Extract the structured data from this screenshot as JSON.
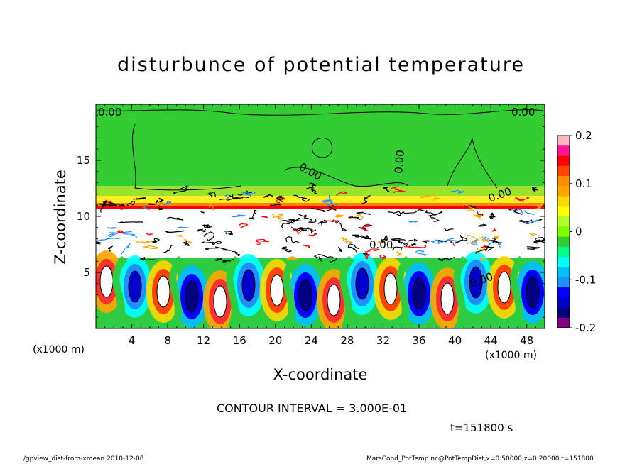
{
  "title": "disturbunce of potential temperature",
  "contour_interval": "CONTOUR INTERVAL = 3.000E-01",
  "time_label": "t=151800 s",
  "footer_left": "./gpview_dist-from-xmean  2010-12-08",
  "footer_right": "MarsCond_PotTemp.nc@PotTempDist,x=0:50000,z=0:20000,t=151800",
  "contour_labels": [
    "0.00",
    "0.00",
    "0.00",
    "0.00",
    "0.00",
    "0.00",
    "0.00"
  ],
  "chart_data": {
    "type": "heatmap",
    "title": "disturbunce of potential temperature",
    "xlabel": "X-coordinate",
    "ylabel": "Z-coordinate",
    "x_unit_label": "(x1000 m)",
    "y_unit_label": "(x1000 m)",
    "xlim": [
      0,
      50
    ],
    "ylim": [
      0,
      20
    ],
    "x_ticks": [
      "4",
      "8",
      "12",
      "16",
      "20",
      "24",
      "28",
      "32",
      "36",
      "40",
      "44",
      "48"
    ],
    "x_tick_values": [
      4,
      8,
      12,
      16,
      20,
      24,
      28,
      32,
      36,
      40,
      44,
      48
    ],
    "y_ticks": [
      "5",
      "10",
      "15"
    ],
    "y_tick_values": [
      5,
      10,
      15
    ],
    "colorbar": {
      "range": [
        -0.2,
        0.2
      ],
      "tick_labels": [
        "0.2",
        "0.1",
        "0",
        "-0.1",
        "-0.2"
      ],
      "tick_values": [
        0.2,
        0.1,
        0,
        -0.1,
        -0.2
      ],
      "colors": [
        "#ffb6c1",
        "#ff1493",
        "#ff0000",
        "#ff4500",
        "#ff8c00",
        "#ffa500",
        "#ffd700",
        "#ffff00",
        "#adff2f",
        "#7fff00",
        "#32cd32",
        "#00ff7f",
        "#00ffff",
        "#00bfff",
        "#1e90ff",
        "#0000ff",
        "#0000cd",
        "#000080",
        "#800080"
      ]
    },
    "contour_interval": 0.3,
    "time": "t=151800 s",
    "grid": false
  }
}
